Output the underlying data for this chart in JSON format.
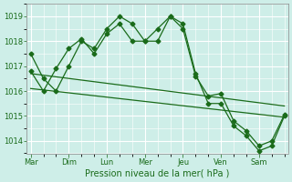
{
  "background_color": "#ceeee8",
  "grid_color": "#ffffff",
  "line_color": "#1a6b1a",
  "title": "Pression niveau de la mer( hPa )",
  "ylabel_ticks": [
    1014,
    1015,
    1016,
    1017,
    1018,
    1019
  ],
  "xlabels": [
    "Mar",
    "Dim",
    "Lun",
    "Mer",
    "Jeu",
    "Ven",
    "Sam"
  ],
  "series1_x": [
    0,
    1,
    2,
    3,
    4,
    5,
    6,
    7,
    8,
    9,
    10,
    11,
    12,
    13,
    14,
    15,
    16,
    17,
    18,
    19,
    20
  ],
  "series1_y": [
    1017.5,
    1016.5,
    1016.0,
    1017.0,
    1018.0,
    1017.7,
    1018.5,
    1019.0,
    1018.7,
    1018.0,
    1018.0,
    1019.0,
    1018.5,
    1016.6,
    1015.8,
    1015.9,
    1014.8,
    1014.4,
    1013.8,
    1014.0,
    1015.05
  ],
  "series2_x": [
    0,
    1,
    2,
    3,
    4,
    5,
    6,
    7,
    8,
    9,
    10,
    11,
    12,
    13,
    14,
    15,
    16,
    17,
    18,
    19,
    20
  ],
  "series2_y": [
    1016.8,
    1016.0,
    1016.9,
    1017.7,
    1018.1,
    1017.5,
    1018.3,
    1018.7,
    1018.0,
    1018.0,
    1018.5,
    1019.0,
    1018.7,
    1016.7,
    1015.5,
    1015.5,
    1014.6,
    1014.2,
    1013.6,
    1013.8,
    1015.0
  ],
  "trend1_x": [
    0,
    20
  ],
  "trend1_y": [
    1016.7,
    1015.4
  ],
  "trend2_x": [
    0,
    20
  ],
  "trend2_y": [
    1016.1,
    1014.95
  ],
  "ylim": [
    1013.5,
    1019.5
  ],
  "xlim": [
    -0.3,
    20.3
  ],
  "day_positions": [
    0,
    3,
    6,
    9,
    12,
    15,
    18
  ],
  "figsize": [
    3.2,
    2.0
  ],
  "dpi": 100
}
